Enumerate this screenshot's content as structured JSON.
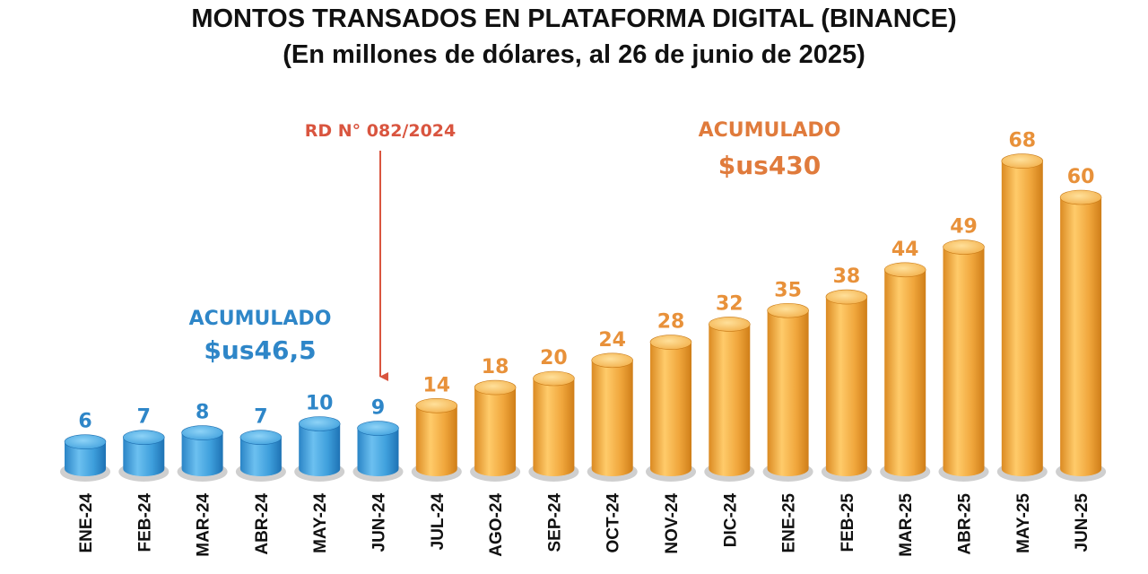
{
  "chart_data": {
    "type": "bar",
    "title": "MONTOS TRANSADOS EN PLATAFORMA DIGITAL (BINANCE)",
    "subtitle": "(En millones de dólares, al 26 de junio de 2025)",
    "categories": [
      "ENE-24",
      "FEB-24",
      "MAR-24",
      "ABR-24",
      "MAY-24",
      "JUN-24",
      "JUL-24",
      "AGO-24",
      "SEP-24",
      "OCT-24",
      "NOV-24",
      "DIC-24",
      "ENE-25",
      "FEB-25",
      "MAR-25",
      "ABR-25",
      "MAY-25",
      "JUN-25"
    ],
    "values": [
      6,
      7,
      8,
      7,
      10,
      9,
      14,
      18,
      20,
      24,
      28,
      32,
      35,
      38,
      44,
      49,
      68,
      60
    ],
    "data_labels": [
      "6",
      "7",
      "8",
      "7",
      "10",
      "9",
      "14",
      "18",
      "20",
      "24",
      "28",
      "32",
      "35",
      "38",
      "44",
      "49",
      "68",
      "60"
    ],
    "ylim": [
      0,
      70
    ],
    "grid": false,
    "legend": "none",
    "colors": {
      "before": "#3E9FDC",
      "after": "#F0A63C",
      "before_label": "#2E86C8",
      "after_label": "#E8913A",
      "annotation_accumulated_after": "#E07B3C",
      "regulation_arrow": "#D9553F"
    },
    "annotations": {
      "accumulated_before": {
        "label": "ACUMULADO",
        "value": "$us46,5"
      },
      "accumulated_after": {
        "label": "ACUMULADO",
        "value": "$us430"
      },
      "regulation": {
        "label": "RD N° 082/2024"
      }
    }
  }
}
